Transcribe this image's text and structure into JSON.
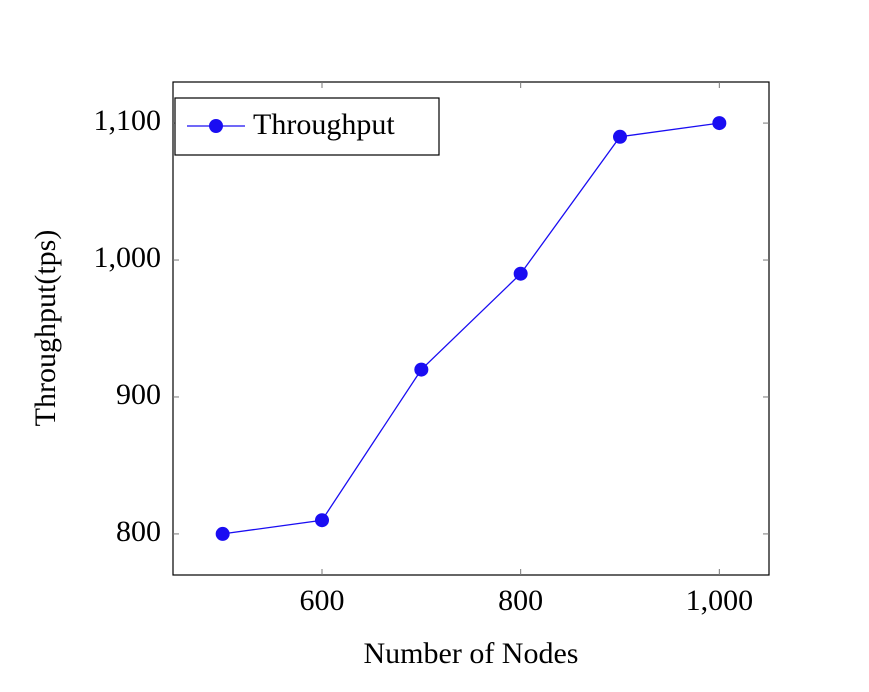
{
  "chart_data": {
    "type": "line",
    "x_label": "Number of Nodes",
    "y_label": "Throughput(tps)",
    "x": [
      500,
      600,
      700,
      800,
      900,
      1000
    ],
    "series": [
      {
        "name": "Throughput",
        "color": "#1a0df2",
        "values": [
          800,
          810,
          920,
          990,
          1090,
          1100
        ]
      }
    ],
    "xlim": [
      450,
      1050
    ],
    "xticks": [
      600,
      800,
      {
        "value": 1000,
        "label": "1,000"
      }
    ],
    "ylim": [
      770,
      1130
    ],
    "yticks": [
      800,
      900,
      {
        "value": 1000,
        "label": "1,000"
      },
      {
        "value": 1100,
        "label": "1,100"
      }
    ],
    "grid": false,
    "legend": "upper left"
  }
}
